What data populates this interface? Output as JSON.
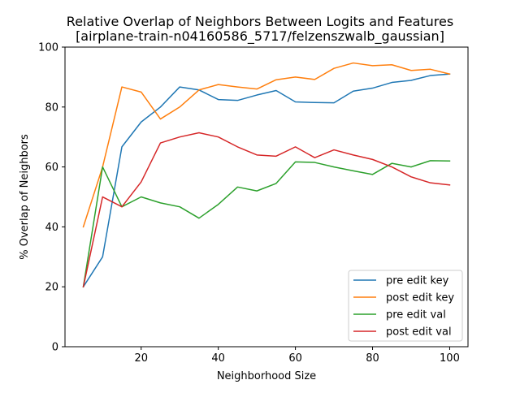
{
  "chart_data": {
    "type": "line",
    "title": "Relative Overlap of Neighbors Between Logits and Features",
    "subtitle": "[airplane-train-n04160586_5717/felzenszwalb_gaussian]",
    "xlabel": "Neighborhood Size",
    "ylabel": "% Overlap of Neighbors",
    "xlim": [
      0.25,
      104.75
    ],
    "ylim": [
      0,
      100
    ],
    "xticks": [
      20,
      40,
      60,
      80,
      100
    ],
    "yticks": [
      0,
      20,
      40,
      60,
      80,
      100
    ],
    "grid": false,
    "legend_position": "lower-right",
    "x": [
      5,
      10,
      15,
      20,
      25,
      30,
      35,
      40,
      45,
      50,
      55,
      60,
      65,
      70,
      75,
      80,
      85,
      90,
      95,
      100
    ],
    "series": [
      {
        "name": "pre edit key",
        "color": "#1f77b4",
        "values": [
          20,
          30,
          66.7,
          75,
          80,
          86.7,
          85.7,
          82.5,
          82.2,
          84,
          85.5,
          81.7,
          81.5,
          81.4,
          85.3,
          86.3,
          88.2,
          88.9,
          90.5,
          91
        ]
      },
      {
        "name": "post edit key",
        "color": "#ff7f0e",
        "values": [
          40,
          60,
          86.7,
          85,
          76,
          80,
          85.7,
          87.5,
          86.7,
          86,
          89.1,
          90,
          89.2,
          92.9,
          94.7,
          93.8,
          94.1,
          92.2,
          92.6,
          91
        ]
      },
      {
        "name": "pre edit val",
        "color": "#2ca02c",
        "values": [
          20,
          60,
          46.7,
          50,
          48,
          46.7,
          42.9,
          47.5,
          53.3,
          52,
          54.5,
          61.7,
          61.5,
          60,
          58.7,
          57.5,
          61.2,
          60,
          62.1,
          62
        ]
      },
      {
        "name": "post edit val",
        "color": "#d62728",
        "values": [
          20,
          50,
          46.7,
          55,
          68,
          70,
          71.4,
          70,
          66.7,
          64,
          63.6,
          66.7,
          63.1,
          65.7,
          64,
          62.5,
          60,
          56.7,
          54.7,
          54
        ]
      }
    ]
  }
}
